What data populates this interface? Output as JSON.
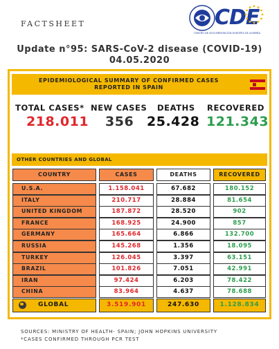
{
  "header": {
    "factsheet": "FACTSHEET",
    "logo_text": "CDE",
    "logo_sub": "CENTRO DE DOCUMENTACIÓN EUROPEA DE ALMERÍA"
  },
  "title": {
    "line1": "Update n°95: SARS-CoV-2 disease (COVID-19)",
    "line2": "04.05.2020"
  },
  "spain": {
    "banner_line1": "EPIDEMIOLOGICAL SUMMARY OF CONFIRMED CASES",
    "banner_line2": "REPORTED IN SPAIN",
    "total_cases_label": "TOTAL CASES*",
    "total_cases": "218.011",
    "new_cases_label": "NEW CASES",
    "new_cases": "356",
    "deaths_label": "DEATHS",
    "deaths": "25.428",
    "recovered_label": "RECOVERED",
    "recovered": "121.343"
  },
  "other": {
    "banner": "OTHER COUNTRIES AND GLOBAL",
    "headers": {
      "country": "COUNTRY",
      "cases": "CASES",
      "deaths": "DEATHS",
      "recovered": "RECOVERED"
    },
    "rows": [
      {
        "country": "U.S.A.",
        "cases": "1.158.041",
        "deaths": "67.682",
        "recovered": "180.152"
      },
      {
        "country": "ITALY",
        "cases": "210.717",
        "deaths": "28.884",
        "recovered": "81.654"
      },
      {
        "country": "UNITED KINGDOM",
        "cases": "187.872",
        "deaths": "28.520",
        "recovered": "902"
      },
      {
        "country": "FRANCE",
        "cases": "168.925",
        "deaths": "24.900",
        "recovered": "857"
      },
      {
        "country": "GERMANY",
        "cases": "165.664",
        "deaths": "6.866",
        "recovered": "132.700"
      },
      {
        "country": "RUSSIA",
        "cases": "145.268",
        "deaths": "1.356",
        "recovered": "18.095"
      },
      {
        "country": "TURKEY",
        "cases": "126.045",
        "deaths": "3.397",
        "recovered": "63.151"
      },
      {
        "country": "BRAZIL",
        "cases": "101.826",
        "deaths": "7.051",
        "recovered": "42.991"
      },
      {
        "country": "IRAN",
        "cases": "97.424",
        "deaths": "6.203",
        "recovered": "78.422"
      },
      {
        "country": "CHINA",
        "cases": "83.964",
        "deaths": "4.637",
        "recovered": "78.688"
      }
    ],
    "global": {
      "label": "GLOBAL",
      "cases": "3.519.901",
      "deaths": "247.630",
      "recovered": "1.128.834"
    }
  },
  "footer": {
    "sources": "SOURCES: MINISTRY OF HEALTH- SPAIN; JOHN HOPKINS UNIVERSITY",
    "note": "*CASES CONFIRMED THROUGH PCR TEST"
  },
  "colors": {
    "accent_yellow": "#f5b800",
    "country_orange": "#f58a4b",
    "cases_red": "#e0262b",
    "recovered_green": "#2d9d4e",
    "logo_blue": "#1f3d9c"
  }
}
